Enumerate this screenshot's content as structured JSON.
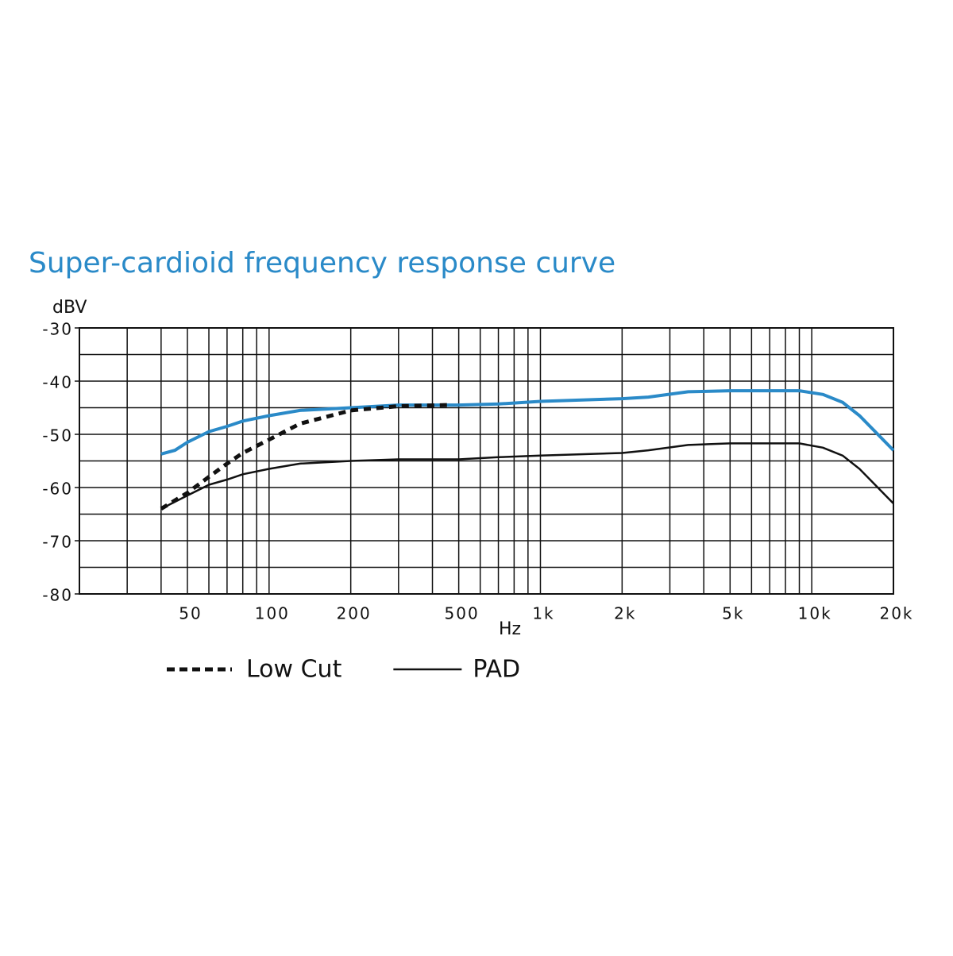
{
  "chart_data": {
    "type": "line",
    "title": "Super-cardioid frequency response curve",
    "ylabel": "dBV",
    "xlabel": "Hz",
    "xscale": "log",
    "xlim": [
      20,
      20000
    ],
    "ylim": [
      -80,
      -30
    ],
    "xticks": [
      50,
      100,
      200,
      500,
      {
        "value": 1000,
        "label": "1k"
      },
      {
        "value": 2000,
        "label": "2k"
      },
      {
        "value": 5000,
        "label": "5k"
      },
      {
        "value": 10000,
        "label": "10k"
      },
      {
        "value": 20000,
        "label": "20k"
      }
    ],
    "xgrid": [
      30,
      40,
      60,
      70,
      80,
      90,
      300,
      400,
      600,
      700,
      800,
      900,
      3000,
      4000,
      6000,
      7000,
      8000,
      9000
    ],
    "yticks": [
      -30,
      -40,
      -50,
      -60,
      -70,
      -80
    ],
    "ygrid": [
      -35,
      -45,
      -55,
      -65,
      -75
    ],
    "grid": true,
    "series": [
      {
        "color": "#2a8ac8",
        "dash": "solid",
        "x": [
          40,
          45,
          50,
          60,
          70,
          80,
          100,
          130,
          200,
          300,
          500,
          700,
          1000,
          2000,
          2500,
          3500,
          5000,
          9000,
          11000,
          13000,
          15000,
          20000
        ],
        "values": [
          -53.7,
          -53,
          -51.5,
          -49.5,
          -48.5,
          -47.5,
          -46.5,
          -45.5,
          -45,
          -44.5,
          -44.5,
          -44.3,
          -43.8,
          -43.3,
          -43,
          -42,
          -41.8,
          -41.8,
          -42.5,
          -44,
          -46.5,
          -53
        ]
      },
      {
        "name": "Low Cut",
        "color": "#111111",
        "dash": "dashed",
        "x": [
          40,
          50,
          60,
          70,
          80,
          100,
          130,
          200,
          300,
          460
        ],
        "values": [
          -64,
          -61,
          -58,
          -55.5,
          -53.5,
          -51,
          -48,
          -45.5,
          -44.7,
          -44.5
        ]
      },
      {
        "name": "PAD",
        "color": "#111111",
        "dash": "solid",
        "x": [
          40,
          50,
          60,
          70,
          80,
          100,
          130,
          200,
          300,
          500,
          700,
          1000,
          2000,
          2500,
          3500,
          5000,
          9000,
          11000,
          13000,
          15000,
          20000
        ],
        "values": [
          -64,
          -61.5,
          -59.5,
          -58.5,
          -57.5,
          -56.5,
          -55.5,
          -55,
          -54.7,
          -54.7,
          -54.3,
          -54,
          -53.5,
          -53,
          -52,
          -51.7,
          -51.7,
          -52.5,
          -54,
          -56.5,
          -63
        ]
      }
    ]
  }
}
